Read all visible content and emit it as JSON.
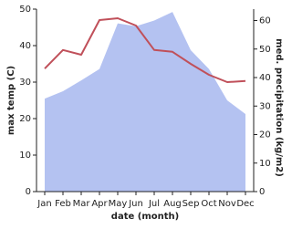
{
  "chart_data": {
    "type": "line-area",
    "x_label": "date (month)",
    "y_label": "max temp (C)",
    "y2_label": "med. precipitation (kg/m2)",
    "categories": [
      "Jan",
      "Feb",
      "Mar",
      "Apr",
      "May",
      "Jun",
      "Jul",
      "Aug",
      "Sep",
      "Oct",
      "Nov",
      "Dec"
    ],
    "ylim": [
      0,
      50
    ],
    "yticks": [
      0,
      10,
      20,
      30,
      40,
      50
    ],
    "y2lim": [
      0,
      64
    ],
    "y2ticks": [
      0,
      10,
      20,
      30,
      40,
      50,
      60
    ],
    "series": [
      {
        "name": "max temp",
        "color": "#c0505a",
        "values": [
          33.7,
          38.8,
          37.5,
          47,
          47.5,
          45.5,
          38.8,
          38.3,
          35,
          32,
          30,
          30.3
        ]
      },
      {
        "name": "med. precipitation",
        "color": "#b4c2f1",
        "axis": "y2",
        "values": [
          32.6,
          35.2,
          39,
          43,
          59,
          58,
          60,
          63,
          49.6,
          43,
          32,
          27.2
        ]
      }
    ]
  }
}
